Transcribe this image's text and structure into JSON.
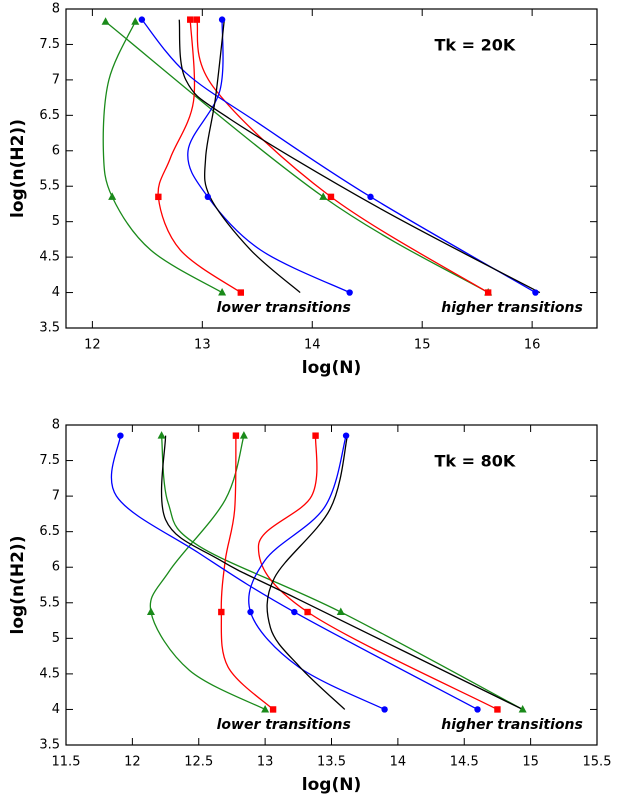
{
  "chart_data": [
    {
      "type": "line",
      "title": "Tk = 20K",
      "x_label": "log(N)",
      "y_label": "log(n(H2))",
      "annotations": [
        "lower transitions",
        "higher transitions"
      ],
      "xlim": [
        11.76,
        16.59
      ],
      "ylim": [
        3.5,
        8
      ],
      "xticks": [
        12,
        13,
        14,
        15,
        16
      ],
      "yticks": [
        3.5,
        4,
        4.5,
        5,
        5.5,
        6,
        6.5,
        7,
        7.5,
        8
      ],
      "series": [
        {
          "color": "#1a8a1a",
          "marker": "none",
          "x": [
            12.39,
            12.15,
            12.1,
            12.18,
            12.53,
            13.18
          ],
          "y": [
            7.82,
            7.0,
            6.0,
            5.35,
            4.6,
            4.0
          ]
        },
        {
          "color": "#1a8a1a",
          "marker": "none",
          "x": [
            12.12,
            14.1,
            15.6
          ],
          "y": [
            7.82,
            5.35,
            4.0
          ]
        },
        {
          "color": "#ff0000",
          "marker": "none",
          "x": [
            12.89,
            12.92,
            12.71,
            12.6,
            12.8,
            13.35
          ],
          "y": [
            7.85,
            6.7,
            5.9,
            5.35,
            4.6,
            4.0
          ]
        },
        {
          "color": "#ff0000",
          "marker": "none",
          "x": [
            12.95,
            13.1,
            14.17,
            15.6
          ],
          "y": [
            7.85,
            6.9,
            5.35,
            4.0
          ]
        },
        {
          "color": "#0000ff",
          "marker": "none",
          "x": [
            13.18,
            13.16,
            12.87,
            13.05,
            13.53,
            14.34
          ],
          "y": [
            7.85,
            6.85,
            6.0,
            5.35,
            4.6,
            4.0
          ]
        },
        {
          "color": "#0000ff",
          "marker": "none",
          "x": [
            12.45,
            12.85,
            13.5,
            14.53,
            16.03
          ],
          "y": [
            7.85,
            7.1,
            6.4,
            5.35,
            4.0
          ]
        },
        {
          "color": "#000000",
          "marker": "none",
          "x": [
            13.2,
            13.12,
            13.03,
            13.07,
            13.44,
            13.89
          ],
          "y": [
            7.85,
            6.75,
            5.9,
            5.35,
            4.6,
            4.0
          ]
        },
        {
          "color": "#000000",
          "marker": "none",
          "x": [
            12.79,
            12.85,
            13.25,
            14.6,
            16.07
          ],
          "y": [
            7.85,
            7.0,
            6.45,
            5.2,
            4.0
          ]
        },
        {
          "color": "#1a8a1a",
          "marker": "triangle",
          "x": [
            12.12,
            12.39,
            12.18,
            14.1,
            13.18,
            15.6
          ],
          "y": [
            7.82,
            7.82,
            5.35,
            5.35,
            4.0,
            4.0
          ]
        },
        {
          "color": "#ff0000",
          "marker": "square",
          "x": [
            12.89,
            12.95,
            12.6,
            14.17,
            13.35,
            15.6
          ],
          "y": [
            7.85,
            7.85,
            5.35,
            5.35,
            4.0,
            4.0
          ]
        },
        {
          "color": "#0000ff",
          "marker": "circle",
          "x": [
            12.45,
            13.18,
            13.05,
            14.53,
            14.34,
            16.03
          ],
          "y": [
            7.85,
            7.85,
            5.35,
            5.35,
            4.0,
            4.0
          ]
        }
      ]
    },
    {
      "type": "line",
      "title": "Tk = 80K",
      "x_label": "log(N)",
      "y_label": "log(n(H2))",
      "annotations": [
        "lower transitions",
        "higher transitions"
      ],
      "xlim": [
        11.5,
        15.5
      ],
      "ylim": [
        3.5,
        8
      ],
      "xticks": [
        11.5,
        12,
        12.5,
        13,
        13.5,
        14,
        14.5,
        15,
        15.5
      ],
      "yticks": [
        3.5,
        4,
        4.5,
        5,
        5.5,
        6,
        6.5,
        7,
        7.5,
        8
      ],
      "series": [
        {
          "color": "#1a8a1a",
          "marker": "none",
          "x": [
            12.84,
            12.7,
            12.28,
            12.14,
            12.43,
            13.0
          ],
          "y": [
            7.85,
            6.95,
            5.95,
            5.37,
            4.55,
            4.0
          ]
        },
        {
          "color": "#1a8a1a",
          "marker": "none",
          "x": [
            12.22,
            12.27,
            12.5,
            13.57,
            14.94
          ],
          "y": [
            7.85,
            6.9,
            6.3,
            5.37,
            4.0
          ]
        },
        {
          "color": "#ff0000",
          "marker": "none",
          "x": [
            12.78,
            12.77,
            12.7,
            12.67,
            12.72,
            13.06
          ],
          "y": [
            7.85,
            6.8,
            6.1,
            5.37,
            4.6,
            4.0
          ]
        },
        {
          "color": "#ff0000",
          "marker": "none",
          "x": [
            13.38,
            13.35,
            12.95,
            13.32,
            14.75
          ],
          "y": [
            7.85,
            7.0,
            6.3,
            5.37,
            4.0
          ]
        },
        {
          "color": "#0000ff",
          "marker": "none",
          "x": [
            13.61,
            13.45,
            13.0,
            12.89,
            13.25,
            13.9
          ],
          "y": [
            7.85,
            6.85,
            6.1,
            5.37,
            4.6,
            4.0
          ]
        },
        {
          "color": "#0000ff",
          "marker": "none",
          "x": [
            11.91,
            11.88,
            12.5,
            13.22,
            14.6
          ],
          "y": [
            7.85,
            7.0,
            6.2,
            5.37,
            4.0
          ]
        },
        {
          "color": "#000000",
          "marker": "none",
          "x": [
            13.62,
            13.49,
            13.07,
            13.04,
            13.26,
            13.6
          ],
          "y": [
            7.85,
            6.82,
            5.85,
            5.15,
            4.6,
            4.0
          ]
        },
        {
          "color": "#000000",
          "marker": "none",
          "x": [
            12.25,
            12.25,
            12.66,
            13.26,
            14.94
          ],
          "y": [
            7.85,
            6.67,
            6.1,
            5.54,
            4.0
          ]
        },
        {
          "color": "#1a8a1a",
          "marker": "triangle",
          "x": [
            12.22,
            12.84,
            12.14,
            13.57,
            13.0,
            14.94
          ],
          "y": [
            7.85,
            7.85,
            5.37,
            5.37,
            4.0,
            4.0
          ]
        },
        {
          "color": "#ff0000",
          "marker": "square",
          "x": [
            12.78,
            13.38,
            12.67,
            13.32,
            13.06,
            14.75
          ],
          "y": [
            7.85,
            7.85,
            5.37,
            5.37,
            4.0,
            4.0
          ]
        },
        {
          "color": "#0000ff",
          "marker": "circle",
          "x": [
            11.91,
            13.61,
            12.89,
            13.22,
            13.9,
            14.6
          ],
          "y": [
            7.85,
            7.85,
            5.37,
            5.37,
            4.0,
            4.0
          ]
        }
      ]
    }
  ]
}
